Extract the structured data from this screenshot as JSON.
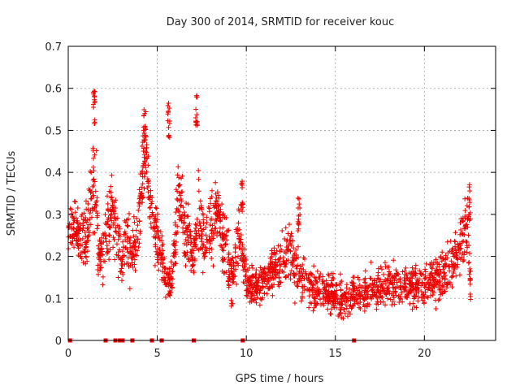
{
  "chart_data": {
    "type": "scatter",
    "title": "Day 300 of 2014, SRMTID for receiver kouc",
    "xlabel": "GPS time / hours",
    "ylabel": "SRMTID / TECUs",
    "xlim": [
      0,
      24
    ],
    "ylim": [
      0,
      0.7
    ],
    "xticks": [
      0,
      5,
      10,
      15,
      20
    ],
    "yticks": [
      0,
      0.1,
      0.2,
      0.3,
      0.4,
      0.5,
      0.6,
      0.7
    ],
    "xtick_labels": [
      "0",
      "5",
      "10",
      "15",
      "20"
    ],
    "ytick_labels": [
      "0",
      "0.1",
      "0.2",
      "0.3",
      "0.4",
      "0.5",
      "0.6",
      "0.7"
    ],
    "grid": true,
    "marker": "+",
    "color": "#ee0000",
    "series_trend": {
      "name": "SRMTID",
      "x": [
        0.0,
        0.5,
        1.0,
        1.3,
        1.5,
        1.7,
        2.0,
        2.3,
        2.6,
        3.0,
        3.3,
        3.6,
        4.0,
        4.2,
        4.4,
        4.6,
        5.0,
        5.5,
        5.8,
        6.2,
        6.6,
        7.0,
        7.3,
        7.6,
        8.0,
        8.4,
        8.8,
        9.2,
        9.6,
        10.0,
        10.5,
        11.0,
        12.0,
        12.5,
        13.0,
        14.0,
        15.0,
        15.5,
        16.0,
        17.0,
        18.0,
        19.0,
        20.0,
        21.0,
        21.5,
        22.0,
        22.4,
        22.6
      ],
      "y": [
        0.27,
        0.26,
        0.24,
        0.34,
        0.41,
        0.2,
        0.21,
        0.28,
        0.3,
        0.19,
        0.25,
        0.2,
        0.28,
        0.45,
        0.43,
        0.3,
        0.24,
        0.15,
        0.14,
        0.35,
        0.26,
        0.19,
        0.3,
        0.23,
        0.26,
        0.31,
        0.22,
        0.14,
        0.26,
        0.14,
        0.12,
        0.14,
        0.19,
        0.21,
        0.15,
        0.12,
        0.11,
        0.09,
        0.11,
        0.12,
        0.13,
        0.13,
        0.14,
        0.15,
        0.17,
        0.22,
        0.28,
        0.12
      ],
      "spread": [
        0.04,
        0.05,
        0.07,
        0.1,
        0.13,
        0.05,
        0.06,
        0.08,
        0.07,
        0.05,
        0.07,
        0.06,
        0.07,
        0.08,
        0.07,
        0.06,
        0.06,
        0.04,
        0.04,
        0.08,
        0.08,
        0.05,
        0.1,
        0.06,
        0.07,
        0.06,
        0.07,
        0.06,
        0.07,
        0.04,
        0.04,
        0.04,
        0.06,
        0.07,
        0.06,
        0.04,
        0.04,
        0.03,
        0.04,
        0.04,
        0.04,
        0.04,
        0.05,
        0.05,
        0.05,
        0.06,
        0.07,
        0.04
      ],
      "peaks": [
        {
          "x": 1.45,
          "y": 0.6
        },
        {
          "x": 4.3,
          "y": 0.56
        },
        {
          "x": 5.65,
          "y": 0.57
        },
        {
          "x": 7.2,
          "y": 0.585
        },
        {
          "x": 9.75,
          "y": 0.39
        },
        {
          "x": 12.95,
          "y": 0.345
        },
        {
          "x": 22.55,
          "y": 0.375
        }
      ],
      "count": 2200
    },
    "zero_markers_x": [
      0.1,
      2.1,
      2.65,
      2.9,
      3.05,
      3.6,
      4.7,
      5.25,
      7.05,
      9.8,
      16.05
    ]
  }
}
